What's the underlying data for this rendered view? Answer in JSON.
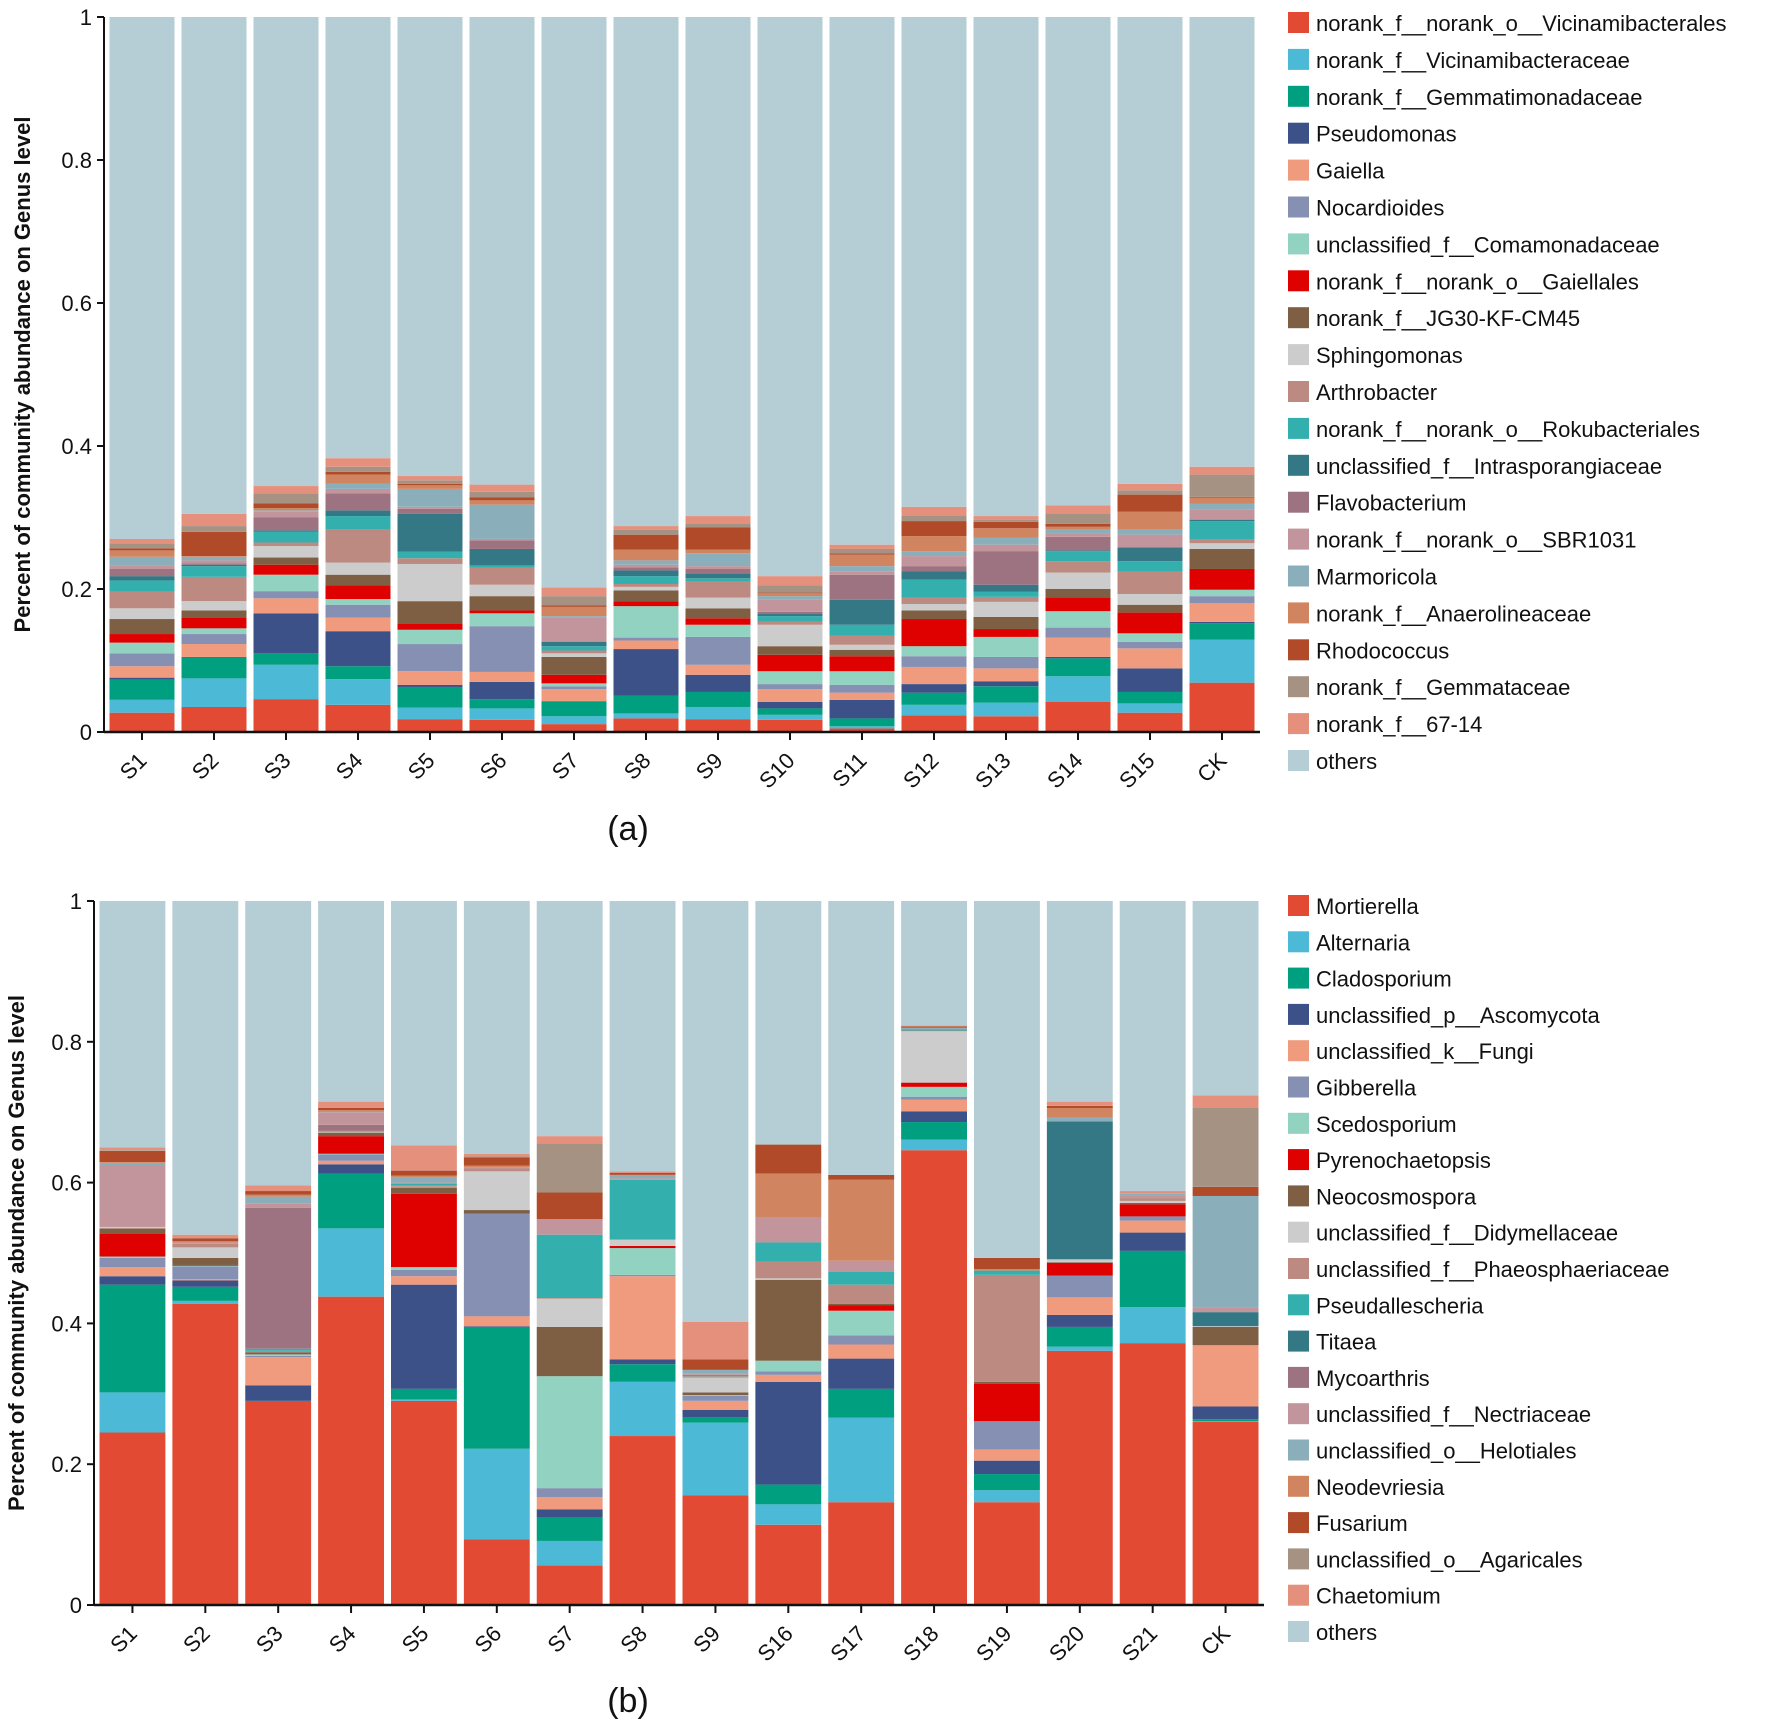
{
  "chart_data": [
    {
      "type": "bar",
      "stacked": true,
      "panel_label": "(a)",
      "ylabel": "Percent of community abundance on Genus level",
      "ylim": [
        0,
        1
      ],
      "yticks": [
        "0",
        "0.2",
        "0.4",
        "0.6",
        "0.8",
        "1"
      ],
      "legend_position": "right",
      "categories": [
        "S1",
        "S2",
        "S3",
        "S4",
        "S5",
        "S6",
        "S7",
        "S8",
        "S9",
        "S10",
        "S11",
        "S12",
        "S13",
        "S14",
        "S15",
        "CK"
      ],
      "series_names": [
        "norank_f__norank_o__Vicinamibacterales",
        "norank_f__Vicinamibacteraceae",
        "norank_f__Gemmatimonadaceae",
        "Pseudomonas",
        "Gaiella",
        "Nocardioides",
        "unclassified_f__Comamonadaceae",
        "norank_f__norank_o__Gaiellales",
        "norank_f__JG30-KF-CM45",
        "Sphingomonas",
        "Arthrobacter",
        "norank_f__norank_o__Rokubacteriales",
        "unclassified_f__Intrasporangiaceae",
        "Flavobacterium",
        "norank_f__norank_o__SBR1031",
        "Marmoricola",
        "norank_f__Anaerolineaceae",
        "Rhodococcus",
        "norank_f__Gemmataceae",
        "norank_f__67-14",
        "others"
      ],
      "colors": [
        "#e34a33",
        "#4cb9d6",
        "#009f80",
        "#3b5187",
        "#f09a7e",
        "#8590b2",
        "#91d2c0",
        "#df0000",
        "#7e5f44",
        "#cccccc",
        "#bc8a80",
        "#33afae",
        "#347785",
        "#9d7382",
        "#c1959b",
        "#8aafbb",
        "#d08560",
        "#b04a28",
        "#a59283",
        "#e5907d",
        "#b5cdd4"
      ],
      "values_by_sample": [
        [
          0.027,
          0.018,
          0.028,
          0.003,
          0.016,
          0.018,
          0.015,
          0.012,
          0.021,
          0.015,
          0.023,
          0.016,
          0.006,
          0.01,
          0.005,
          0.012,
          0.009,
          0.003,
          0.007,
          0.006
        ],
        [
          0.035,
          0.04,
          0.029,
          0.001,
          0.018,
          0.014,
          0.008,
          0.015,
          0.01,
          0.013,
          0.034,
          0.015,
          0.002,
          0.002,
          0.004,
          0.005,
          0.001,
          0.034,
          0.008,
          0.017
        ],
        [
          0.046,
          0.048,
          0.016,
          0.056,
          0.021,
          0.01,
          0.023,
          0.014,
          0.01,
          0.016,
          0.005,
          0.015,
          0.002,
          0.018,
          0.008,
          0.002,
          0.003,
          0.007,
          0.014,
          0.01
        ],
        [
          0.038,
          0.036,
          0.018,
          0.049,
          0.019,
          0.018,
          0.008,
          0.019,
          0.015,
          0.017,
          0.046,
          0.019,
          0.008,
          0.024,
          0.006,
          0.007,
          0.013,
          0.004,
          0.007,
          0.012
        ],
        [
          0.018,
          0.016,
          0.029,
          0.003,
          0.019,
          0.038,
          0.02,
          0.009,
          0.031,
          0.052,
          0.008,
          0.009,
          0.053,
          0.007,
          0.003,
          0.025,
          0.005,
          0.002,
          0.005,
          0.006
        ],
        [
          0.017,
          0.016,
          0.013,
          0.024,
          0.014,
          0.064,
          0.018,
          0.004,
          0.02,
          0.016,
          0.024,
          0.003,
          0.023,
          0.012,
          0.002,
          0.048,
          0.006,
          0.004,
          0.008,
          0.01
        ],
        [
          0.011,
          0.011,
          0.02,
          0.001,
          0.017,
          0.004,
          0.004,
          0.012,
          0.025,
          0.005,
          0.004,
          0.006,
          0.006,
          0.001,
          0.033,
          0.002,
          0.013,
          0.002,
          0.013,
          0.012
        ],
        [
          0.019,
          0.007,
          0.025,
          0.065,
          0.012,
          0.004,
          0.044,
          0.007,
          0.015,
          0.005,
          0.004,
          0.011,
          0.008,
          0.004,
          0.004,
          0.006,
          0.015,
          0.021,
          0.007,
          0.005
        ],
        [
          0.018,
          0.017,
          0.021,
          0.024,
          0.014,
          0.039,
          0.017,
          0.009,
          0.014,
          0.015,
          0.022,
          0.005,
          0.007,
          0.006,
          0.004,
          0.018,
          0.005,
          0.031,
          0.006,
          0.01
        ],
        [
          0.017,
          0.007,
          0.009,
          0.009,
          0.018,
          0.007,
          0.018,
          0.023,
          0.012,
          0.03,
          0.004,
          0.008,
          0.003,
          0.003,
          0.017,
          0.005,
          0.004,
          0.001,
          0.01,
          0.013
        ],
        [
          0.005,
          0.003,
          0.011,
          0.026,
          0.01,
          0.011,
          0.019,
          0.021,
          0.009,
          0.007,
          0.013,
          0.015,
          0.035,
          0.035,
          0.004,
          0.008,
          0.016,
          0.002,
          0.006,
          0.006
        ],
        [
          0.023,
          0.015,
          0.017,
          0.012,
          0.024,
          0.015,
          0.014,
          0.038,
          0.012,
          0.009,
          0.009,
          0.025,
          0.012,
          0.007,
          0.014,
          0.007,
          0.021,
          0.021,
          0.008,
          0.012
        ],
        [
          0.022,
          0.019,
          0.023,
          0.007,
          0.018,
          0.016,
          0.028,
          0.011,
          0.017,
          0.021,
          0.007,
          0.007,
          0.01,
          0.047,
          0.009,
          0.01,
          0.013,
          0.009,
          0.003,
          0.005
        ],
        [
          0.042,
          0.036,
          0.025,
          0.002,
          0.027,
          0.014,
          0.023,
          0.019,
          0.012,
          0.023,
          0.016,
          0.014,
          0.001,
          0.019,
          0.004,
          0.006,
          0.004,
          0.004,
          0.015,
          0.011
        ],
        [
          0.027,
          0.013,
          0.016,
          0.033,
          0.028,
          0.009,
          0.012,
          0.029,
          0.011,
          0.015,
          0.031,
          0.015,
          0.019,
          0.0,
          0.018,
          0.007,
          0.025,
          0.024,
          0.006,
          0.009
        ],
        [
          0.069,
          0.06,
          0.023,
          0.002,
          0.026,
          0.01,
          0.009,
          0.029,
          0.028,
          0.008,
          0.005,
          0.026,
          0.002,
          0.0,
          0.014,
          0.008,
          0.009,
          0.001,
          0.031,
          0.011
        ]
      ]
    },
    {
      "type": "bar",
      "stacked": true,
      "panel_label": "(b)",
      "ylabel": "Percent of community abundance on Genus level",
      "ylim": [
        0,
        1
      ],
      "yticks": [
        "0",
        "0.2",
        "0.4",
        "0.6",
        "0.8",
        "1"
      ],
      "legend_position": "right",
      "categories": [
        "S1",
        "S2",
        "S3",
        "S4",
        "S5",
        "S6",
        "S7",
        "S8",
        "S9",
        "S16",
        "S17",
        "S18",
        "S19",
        "S20",
        "S21",
        "CK"
      ],
      "series_names": [
        "Mortierella",
        "Alternaria",
        "Cladosporium",
        "unclassified_p__Ascomycota",
        "unclassified_k__Fungi",
        "Gibberella",
        "Scedosporium",
        "Pyrenochaetopsis",
        "Neocosmospora",
        "unclassified_f__Didymellaceae",
        "unclassified_f__Phaeosphaeriaceae",
        "Pseudallescheria",
        "Titaea",
        "Mycoarthris",
        "unclassified_f__Nectriaceae",
        "unclassified_o__Helotiales",
        "Neodevriesia",
        "Fusarium",
        "unclassified_o__Agaricales",
        "Chaetomium",
        "others"
      ],
      "colors": [
        "#e34a33",
        "#4cb9d6",
        "#009f80",
        "#3b5187",
        "#f09a7e",
        "#8590b2",
        "#91d2c0",
        "#df0000",
        "#7e5f44",
        "#cccccc",
        "#bc8a80",
        "#33afae",
        "#347785",
        "#9d7382",
        "#c1959b",
        "#8aafbb",
        "#d08560",
        "#b04a28",
        "#a59283",
        "#e5907d",
        "#b5cdd4"
      ],
      "values_by_sample": [
        [
          0.245,
          0.057,
          0.153,
          0.012,
          0.013,
          0.013,
          0.002,
          0.032,
          0.008,
          0.002,
          0,
          0,
          0,
          0,
          0.088,
          0.003,
          0.001,
          0.016,
          0.001,
          0.004
        ],
        [
          0.428,
          0.004,
          0.02,
          0.009,
          0.002,
          0.018,
          0.001,
          0.001,
          0.01,
          0.015,
          0.005,
          0,
          0,
          0,
          0.002,
          0,
          0.002,
          0.004,
          0,
          0.005
        ],
        [
          0.289,
          0,
          0.001,
          0.022,
          0.04,
          0.002,
          0.002,
          0,
          0.003,
          0,
          0.002,
          0.003,
          0,
          0.2,
          0.006,
          0.01,
          0.003,
          0.005,
          0,
          0.008
        ],
        [
          0.438,
          0.097,
          0.078,
          0.013,
          0.005,
          0.009,
          0.001,
          0.025,
          0.005,
          0.001,
          0.002,
          0,
          0,
          0.008,
          0.018,
          0.001,
          0.002,
          0.003,
          0.001,
          0.008
        ],
        [
          0.29,
          0.002,
          0.015,
          0.148,
          0.012,
          0.009,
          0.004,
          0.104,
          0.009,
          0.001,
          0.002,
          0.002,
          0,
          0,
          0.002,
          0.008,
          0.002,
          0.007,
          0,
          0.036
        ],
        [
          0.093,
          0.129,
          0.173,
          0.001,
          0.014,
          0.146,
          0,
          0,
          0.005,
          0.055,
          0.004,
          0,
          0,
          0,
          0.002,
          0,
          0.002,
          0.012,
          0.001,
          0.004
        ],
        [
          0.056,
          0.035,
          0.033,
          0.012,
          0.017,
          0.013,
          0.159,
          0,
          0.07,
          0.04,
          0.001,
          0.09,
          0,
          0,
          0.022,
          0,
          0,
          0.038,
          0.07,
          0.01
        ],
        [
          0.24,
          0.077,
          0.025,
          0.007,
          0.118,
          0.002,
          0.038,
          0.003,
          0,
          0.009,
          0,
          0.085,
          0,
          0,
          0.002,
          0.005,
          0,
          0.003,
          0,
          0.002
        ],
        [
          0.156,
          0.103,
          0.008,
          0.01,
          0.013,
          0.007,
          0.001,
          0,
          0.004,
          0.021,
          0.002,
          0.002,
          0,
          0,
          0.002,
          0.005,
          0,
          0.015,
          0,
          0.053
        ],
        [
          0.114,
          0.029,
          0.028,
          0.146,
          0.01,
          0.005,
          0.015,
          0,
          0.115,
          0.002,
          0.024,
          0.027,
          0,
          0,
          0.035,
          0,
          0.063,
          0.041,
          0,
          0
        ],
        [
          0.146,
          0.12,
          0.041,
          0.043,
          0.02,
          0.013,
          0.035,
          0.008,
          0.002,
          0,
          0.027,
          0.018,
          0,
          0,
          0.016,
          0,
          0.115,
          0.007,
          0,
          0
        ],
        [
          0.646,
          0.015,
          0.025,
          0.015,
          0.017,
          0.004,
          0.014,
          0.006,
          0,
          0.073,
          0.001,
          0.002,
          0,
          0,
          0,
          0.002,
          0,
          0.002,
          0,
          0.001
        ],
        [
          0.146,
          0.017,
          0.023,
          0.019,
          0.016,
          0.04,
          0,
          0.053,
          0.003,
          0,
          0.152,
          0.006,
          0,
          0,
          0,
          0,
          0.002,
          0.016,
          0,
          0
        ],
        [
          0.361,
          0.006,
          0.028,
          0.017,
          0.025,
          0.031,
          0,
          0.018,
          0.001,
          0.004,
          0,
          0,
          0.196,
          0,
          0,
          0.005,
          0.014,
          0.003,
          0,
          0.006
        ],
        [
          0.372,
          0.051,
          0.08,
          0.026,
          0.017,
          0.006,
          0,
          0.017,
          0.002,
          0.003,
          0.004,
          0,
          0,
          0,
          0.003,
          0.003,
          0,
          0,
          0,
          0.004
        ],
        [
          0.26,
          0.001,
          0.003,
          0.018,
          0.087,
          0,
          0,
          0,
          0.026,
          0.001,
          0,
          0,
          0.02,
          0,
          0.006,
          0.159,
          0,
          0.013,
          0.113,
          0.017
        ]
      ]
    }
  ]
}
